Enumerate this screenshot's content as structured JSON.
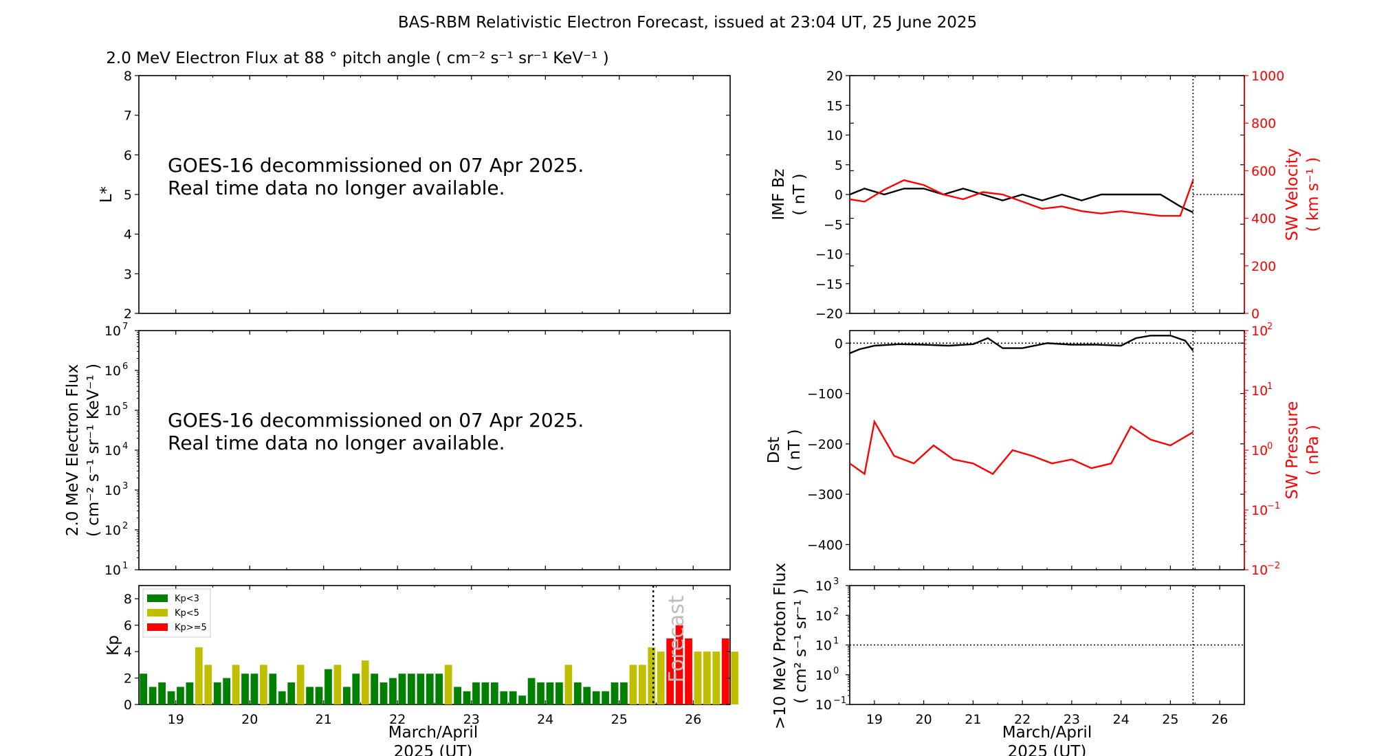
{
  "title": "BAS-RBM Relativistic Electron Forecast, issued at 23:04 UT, 25 June 2025",
  "x_tick_labels": [
    "19",
    "20",
    "21",
    "22",
    "23",
    "24",
    "25",
    "26"
  ],
  "x_axis_label_line1": "March/April",
  "x_axis_label_line2": "2025 (UT)",
  "notice_line1": "GOES-16 decommissioned on 07 Apr 2025.",
  "notice_line2": "Real time data no longer available.",
  "colors": {
    "kp_low": "#008000",
    "kp_mid": "#bfbf00",
    "kp_high": "#ff0000",
    "solar_wind": "#ff0000",
    "black": "#000000"
  },
  "chart_data": [
    {
      "id": "lstar",
      "type": "line",
      "title": "2.0 MeV Electron Flux at 88 ° pitch angle ( cm⁻² s⁻¹ sr⁻¹ KeV⁻¹ )",
      "ylabel": "L*",
      "ylim": [
        2,
        8
      ],
      "y_ticks": [
        "2",
        "3",
        "4",
        "5",
        "6",
        "7",
        "8"
      ],
      "xlim": [
        18.5,
        26.5
      ],
      "series": []
    },
    {
      "id": "flux",
      "type": "line",
      "ylabel_line1": "2.0 MeV Electron Flux",
      "ylabel_line2": "( cm⁻² s⁻¹ sr⁻¹ KeV⁻¹ )",
      "y_scale": "log",
      "ylim": [
        10,
        10000000
      ],
      "y_tick_exponents": [
        "1",
        "2",
        "3",
        "4",
        "5",
        "6",
        "7"
      ],
      "xlim": [
        18.5,
        26.5
      ],
      "series": []
    },
    {
      "id": "kp",
      "type": "bar",
      "ylabel": "Kp",
      "ylim": [
        0,
        9
      ],
      "y_ticks": [
        "0",
        "2",
        "4",
        "6",
        "8"
      ],
      "xlim": [
        18.5,
        26.5
      ],
      "bar_width_days": 0.125,
      "first_bar_day": 18.5,
      "values": [
        2.33,
        1.33,
        1.67,
        1.0,
        1.33,
        1.67,
        4.33,
        3.0,
        1.67,
        2.0,
        3.0,
        2.33,
        2.33,
        3.0,
        2.33,
        1.0,
        1.67,
        3.0,
        1.33,
        1.33,
        2.67,
        3.0,
        1.33,
        2.33,
        3.33,
        2.33,
        1.67,
        2.0,
        2.33,
        2.33,
        2.33,
        2.33,
        2.33,
        3.0,
        1.33,
        1.0,
        1.67,
        1.67,
        1.67,
        1.0,
        1.0,
        0.67,
        2.0,
        1.67,
        1.67,
        1.67,
        3.0,
        1.67,
        1.33,
        1.0,
        1.0,
        1.67,
        1.67,
        3.0,
        3.0,
        4.33,
        4.0,
        5.0,
        6.0,
        5.0,
        4.0,
        4.0,
        4.0,
        5.0,
        4.0
      ],
      "legend": [
        "Kp<3",
        "Kp<5",
        "Kp>=5"
      ],
      "legend_position": "upper-left",
      "annotation": "Forecast",
      "forecast_start_day": 25.46
    },
    {
      "id": "imf",
      "type": "line",
      "ylabel_line1": "IMF Bz",
      "ylabel_line2": "( nT )",
      "ylim": [
        -20,
        20
      ],
      "y_ticks": [
        "20",
        "15",
        "10",
        "5",
        "0",
        "−5",
        "−10",
        "−15",
        "−20"
      ],
      "y2label_line1": "SW Velocity",
      "y2label_line2": "( km s⁻¹ )",
      "y2lim": [
        0,
        1000
      ],
      "y2_ticks": [
        "1000",
        "800",
        "600",
        "400",
        "200",
        "0"
      ],
      "xlim": [
        18.5,
        26.5
      ],
      "now_day": 25.46,
      "series": [
        {
          "axis": "left",
          "color": "#000000",
          "x": [
            18.5,
            18.8,
            19.2,
            19.6,
            20.0,
            20.4,
            20.8,
            21.2,
            21.6,
            22.0,
            22.4,
            22.8,
            23.2,
            23.6,
            24.0,
            24.4,
            24.8,
            25.2,
            25.46
          ],
          "y": [
            0,
            1,
            0,
            1,
            1,
            0,
            1,
            0,
            -1,
            0,
            -1,
            0,
            -1,
            0,
            0,
            0,
            0,
            -2,
            -3
          ]
        },
        {
          "axis": "right",
          "color": "#ff0000",
          "x": [
            18.5,
            18.8,
            19.2,
            19.6,
            20.0,
            20.4,
            20.8,
            21.2,
            21.6,
            22.0,
            22.4,
            22.8,
            23.2,
            23.6,
            24.0,
            24.4,
            24.8,
            25.2,
            25.46
          ],
          "y": [
            480,
            470,
            520,
            560,
            540,
            500,
            480,
            510,
            500,
            470,
            440,
            450,
            430,
            420,
            430,
            420,
            410,
            410,
            560
          ]
        }
      ]
    },
    {
      "id": "dst",
      "type": "line",
      "ylabel_line1": "Dst",
      "ylabel_line2": "( nT )",
      "ylim": [
        -450,
        25
      ],
      "y_ticks": [
        "0",
        "−100",
        "−200",
        "−300",
        "−400"
      ],
      "y2label_line1": "SW Pressure",
      "y2label_line2": "( nPa )",
      "y2_scale": "log",
      "y2lim": [
        0.01,
        100
      ],
      "y2_tick_exponents": [
        "2",
        "1",
        "0",
        "−1",
        "−2"
      ],
      "xlim": [
        18.5,
        26.5
      ],
      "now_day": 25.46,
      "series": [
        {
          "axis": "left",
          "color": "#000000",
          "x": [
            18.5,
            18.7,
            19.0,
            19.5,
            20.0,
            20.5,
            21.0,
            21.3,
            21.6,
            22.0,
            22.5,
            23.0,
            23.5,
            24.0,
            24.3,
            24.6,
            25.0,
            25.3,
            25.46
          ],
          "y": [
            -20,
            -12,
            -5,
            -2,
            -3,
            -5,
            -2,
            10,
            -10,
            -10,
            0,
            -3,
            -3,
            -5,
            10,
            15,
            15,
            5,
            -15
          ]
        },
        {
          "axis": "right",
          "color": "#ff0000",
          "x": [
            18.5,
            18.8,
            19.0,
            19.4,
            19.8,
            20.2,
            20.6,
            21.0,
            21.4,
            21.8,
            22.2,
            22.6,
            23.0,
            23.4,
            23.8,
            24.2,
            24.6,
            25.0,
            25.46
          ],
          "y": [
            0.6,
            0.4,
            3.0,
            0.8,
            0.6,
            1.2,
            0.7,
            0.6,
            0.4,
            1.0,
            0.8,
            0.6,
            0.7,
            0.5,
            0.6,
            2.5,
            1.5,
            1.2,
            2.0
          ]
        }
      ]
    },
    {
      "id": "proton",
      "type": "line",
      "ylabel_line1": ">10 MeV Proton Flux",
      "ylabel_line2": "( cm² s⁻¹ sr⁻¹ )",
      "y_scale": "log",
      "ylim": [
        0.1,
        1000
      ],
      "y_tick_exponents": [
        "3",
        "2",
        "1",
        "0",
        "−1"
      ],
      "xlim": [
        18.5,
        26.5
      ],
      "threshold": 10,
      "now_day": 25.46,
      "series": []
    }
  ]
}
